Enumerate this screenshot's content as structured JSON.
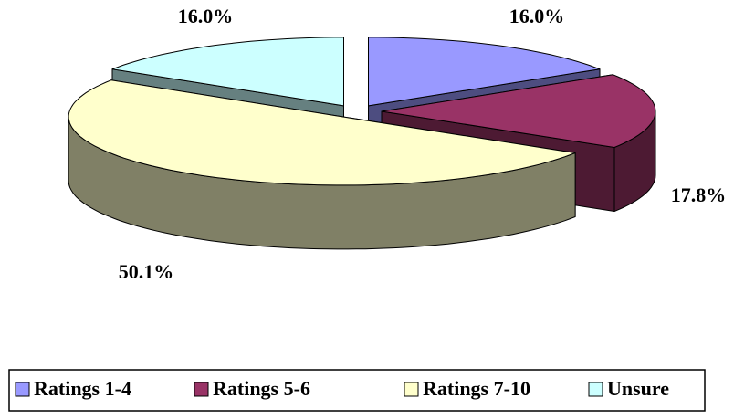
{
  "chart_data": {
    "type": "pie3d",
    "categories": [
      "Ratings 1-4",
      "Ratings 5-6",
      "Ratings 7-10",
      "Unsure"
    ],
    "values": [
      16.0,
      17.8,
      50.1,
      16.0
    ],
    "value_labels": [
      "16.0%",
      "17.8%",
      "50.1%",
      "16.0%"
    ],
    "colors": [
      "#9999ff",
      "#993366",
      "#ffffcc",
      "#ccffff"
    ],
    "legend": "bottom"
  }
}
